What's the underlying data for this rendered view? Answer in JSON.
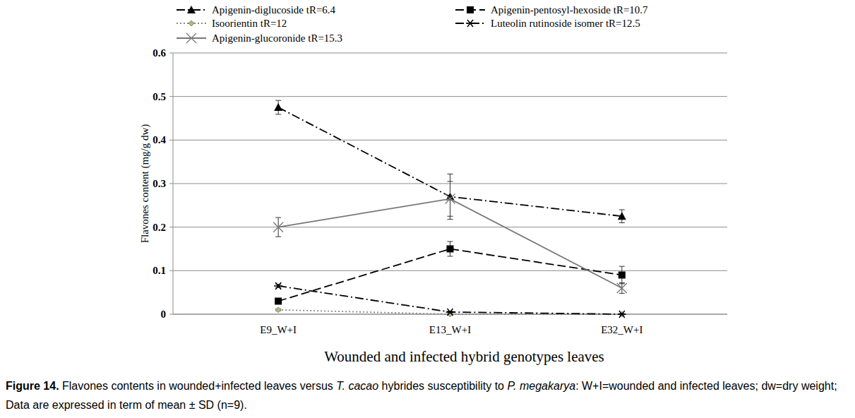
{
  "chart_data": {
    "type": "line",
    "y_label": "Flavones content (mg/g dw)",
    "x_label": "Wounded and infected hybrid genotypes leaves",
    "caption": [
      "Figure 14.",
      " Flavones contents in wounded+infected leaves versus ",
      "T. cacao",
      " hybrides susceptibility to ",
      "P. megakarya",
      ": W+I=wounded and infected leaves; dw=dry weight; Data are expressed in term of mean ± SD (n=9)."
    ],
    "categories": [
      "E9_W+I",
      "E13_W+I",
      "E32_W+I"
    ],
    "ylim": [
      0,
      0.6
    ],
    "yticks": [
      0,
      0.1,
      0.2,
      0.3,
      0.4,
      0.5,
      0.6
    ],
    "grid": true,
    "legend": "top",
    "series": [
      {
        "name": "Apigenin-diglucoside tR=6.4",
        "color": "#000000",
        "marker": "triangle",
        "line_style": "dashdot",
        "values": [
          0.475,
          0.27,
          0.225
        ],
        "errors": [
          0.016,
          0.052,
          0.015
        ]
      },
      {
        "name": "Apigenin-pentosyl-hexoside tR=10.7",
        "color": "#000000",
        "marker": "square",
        "line_style": "dashed",
        "values": [
          0.03,
          0.15,
          0.09
        ],
        "errors": [
          0.004,
          0.017,
          0.02
        ]
      },
      {
        "name": "Isoorientin tR=12",
        "color": "#888888",
        "marker": "diamond",
        "line_style": "dotted",
        "values": [
          0.01,
          0.0,
          0.0
        ],
        "errors": [
          0.002,
          0.001,
          0.001
        ]
      },
      {
        "name": "Luteolin rutinoside isomer tR=12.5",
        "color": "#000000",
        "marker": "asterisk",
        "line_style": "dashdot",
        "values": [
          0.065,
          0.005,
          0.0
        ],
        "errors": [
          0.004,
          0.002,
          0.001
        ]
      },
      {
        "name": "Apigenin-glucoronide tR=15.3",
        "color": "#777777",
        "marker": "x",
        "line_style": "solid",
        "values": [
          0.2,
          0.265,
          0.06
        ],
        "errors": [
          0.022,
          0.04,
          0.012
        ]
      }
    ]
  }
}
